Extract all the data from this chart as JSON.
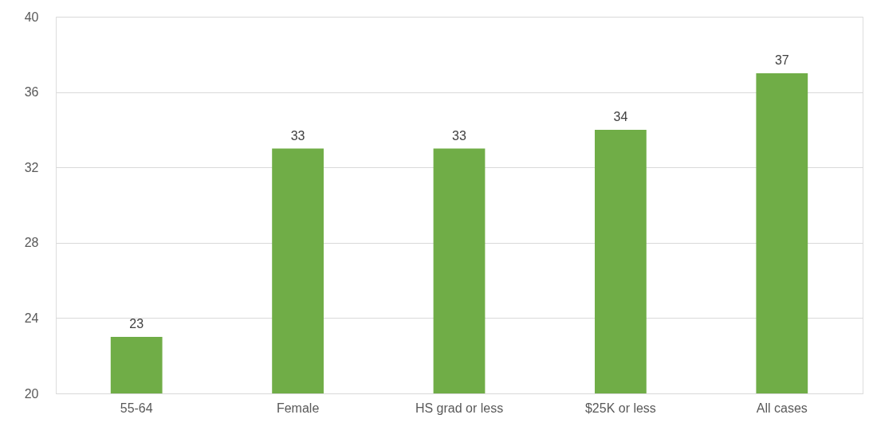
{
  "chart_data": {
    "type": "bar",
    "categories": [
      "55-64",
      "Female",
      "HS grad or less",
      "$25K or less",
      "All cases"
    ],
    "values": [
      23,
      33,
      33,
      34,
      37
    ],
    "color": "#70ad47",
    "ylim": [
      20,
      40
    ],
    "yticks": [
      20,
      24,
      28,
      32,
      36,
      40
    ],
    "grid": "y",
    "data_labels": true
  }
}
